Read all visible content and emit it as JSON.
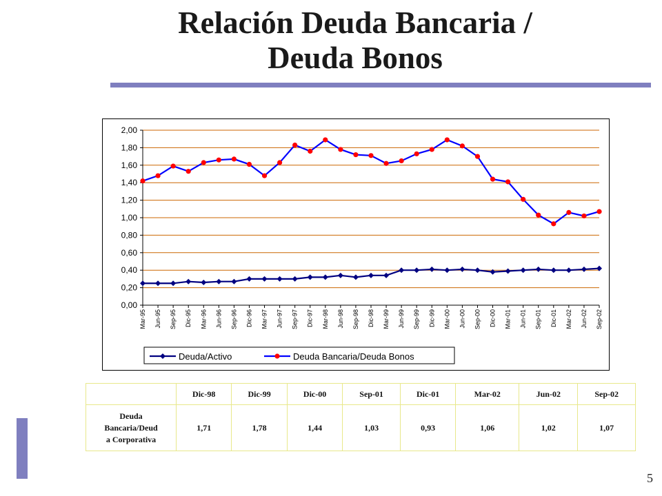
{
  "page": {
    "title_line1": "Relación Deuda Bancaria /",
    "title_line2": "Deuda Bonos",
    "page_number": "5",
    "accent_color": "#7f7fbf"
  },
  "chart_data": {
    "type": "line",
    "title": "",
    "xlabel": "",
    "ylabel": "",
    "ylim": [
      0,
      2.0
    ],
    "yticks": [
      0,
      0.2,
      0.4,
      0.6,
      0.8,
      1.0,
      1.2,
      1.4,
      1.6,
      1.8,
      2.0
    ],
    "ytick_labels": [
      "0,00",
      "0,20",
      "0,40",
      "0,60",
      "0,80",
      "1,00",
      "1,20",
      "1,40",
      "1,60",
      "1,80",
      "2,00"
    ],
    "grid": true,
    "grid_color": "#cc6600",
    "legend_position": "bottom",
    "categories": [
      "Mar-95",
      "Jun-95",
      "Sep-95",
      "Dic-95",
      "Mar-96",
      "Jun-96",
      "Sep-96",
      "Dic-96",
      "Mar-97",
      "Jun-97",
      "Sep-97",
      "Dic-97",
      "Mar-98",
      "Jun-98",
      "Sep-98",
      "Dic-98",
      "Mar-99",
      "Jun-99",
      "Sep-99",
      "Dic-99",
      "Mar-00",
      "Jun-00",
      "Sep-00",
      "Dic-00",
      "Mar-01",
      "Jun-01",
      "Sep-01",
      "Dic-01",
      "Mar-02",
      "Jun-02",
      "Sep-02"
    ],
    "series": [
      {
        "name": "Deuda/Activo",
        "color": "#000080",
        "marker": "diamond",
        "values": [
          0.25,
          0.25,
          0.25,
          0.27,
          0.26,
          0.27,
          0.27,
          0.3,
          0.3,
          0.3,
          0.3,
          0.32,
          0.32,
          0.34,
          0.32,
          0.34,
          0.34,
          0.4,
          0.4,
          0.41,
          0.4,
          0.41,
          0.4,
          0.38,
          0.39,
          0.4,
          0.41,
          0.4,
          0.4,
          0.41,
          0.42
        ]
      },
      {
        "name": "Deuda Bancaria/Deuda Bonos",
        "color": "#0000ff",
        "marker_color": "#ff0000",
        "marker": "circle",
        "values": [
          1.42,
          1.48,
          1.59,
          1.53,
          1.63,
          1.66,
          1.67,
          1.61,
          1.48,
          1.63,
          1.83,
          1.76,
          1.89,
          1.78,
          1.72,
          1.71,
          1.62,
          1.65,
          1.73,
          1.78,
          1.89,
          1.82,
          1.7,
          1.44,
          1.41,
          1.21,
          1.03,
          0.93,
          1.06,
          1.02,
          1.07
        ]
      }
    ]
  },
  "table": {
    "columns": [
      "Dic-98",
      "Dic-99",
      "Dic-00",
      "Sep-01",
      "Dic-01",
      "Mar-02",
      "Jun-02",
      "Sep-02"
    ],
    "row_label": [
      "Deuda",
      "Bancaria/Deud",
      "a Corporativa"
    ],
    "values": [
      "1,71",
      "1,78",
      "1,44",
      "1,03",
      "0,93",
      "1,06",
      "1,02",
      "1,07"
    ]
  }
}
